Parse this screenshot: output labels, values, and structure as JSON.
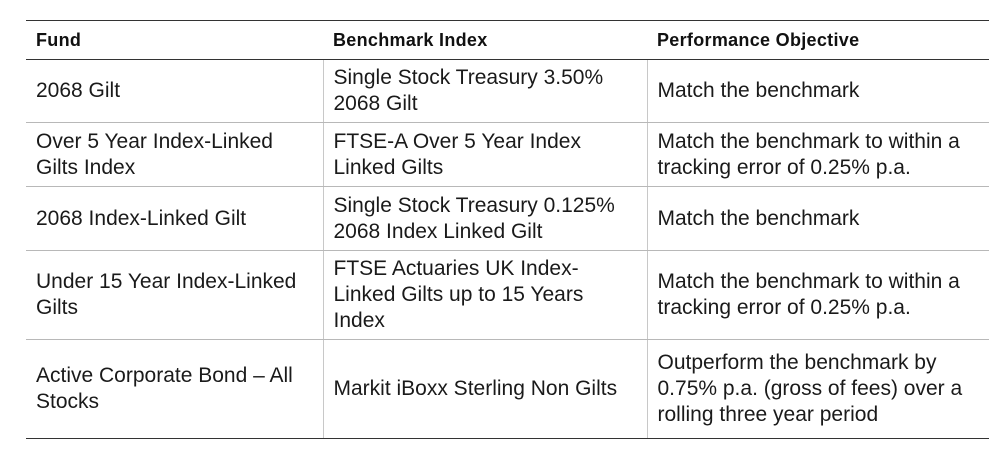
{
  "table": {
    "headers": [
      "Fund",
      "Benchmark Index",
      "Performance Objective"
    ],
    "rows": [
      [
        "2068 Gilt",
        "Single Stock Treasury 3.50% 2068 Gilt",
        "Match the benchmark"
      ],
      [
        "Over 5 Year Index-Linked Gilts Index",
        "FTSE-A Over 5 Year Index Linked Gilts",
        "Match the benchmark to within a tracking error of 0.25% p.a."
      ],
      [
        "2068 Index-Linked Gilt",
        "Single Stock Treasury 0.125% 2068 Index Linked Gilt",
        "Match the benchmark"
      ],
      [
        "Under 15 Year Index-Linked Gilts",
        "FTSE Actuaries UK Index-Linked Gilts up to 15 Years Index",
        "Match the benchmark to within a tracking error of 0.25% p.a."
      ],
      [
        "Active Corporate Bond – All Stocks",
        "Markit iBoxx Sterling Non Gilts",
        "Outperform the benchmark by 0.75% p.a. (gross of fees) over a rolling three year period"
      ]
    ]
  }
}
